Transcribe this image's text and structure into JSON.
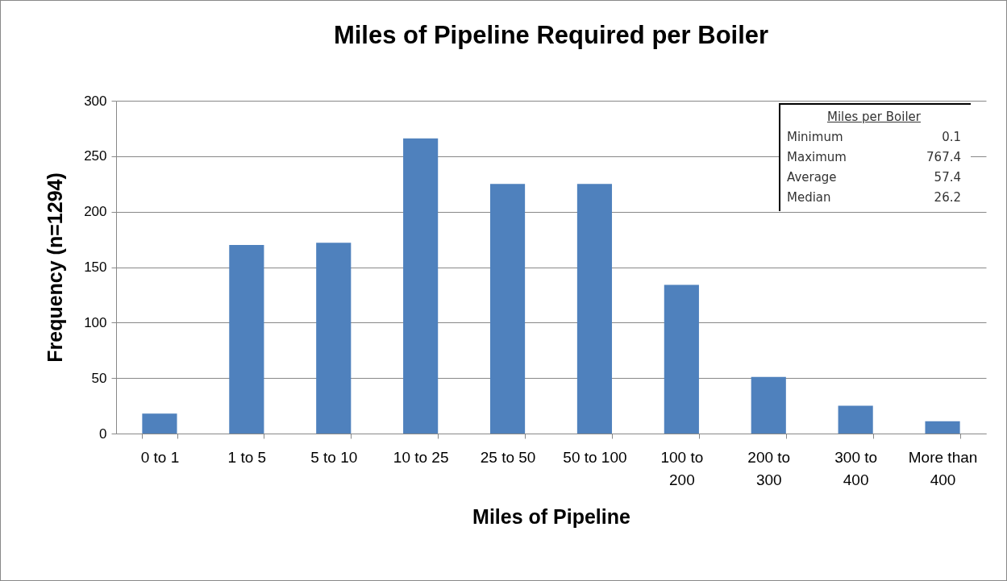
{
  "chart_data": {
    "type": "bar",
    "title": "Miles of Pipeline Required per Boiler",
    "xlabel": "Miles of Pipeline",
    "ylabel": "Frequency (n=1294)",
    "categories": [
      "0 to 1",
      "1 to 5",
      "5 to 10",
      "10 to 25",
      "25 to 50",
      "50 to 100",
      "100 to 200",
      "200 to 300",
      "300 to 400",
      "More than 400"
    ],
    "values": [
      18,
      170,
      172,
      266,
      225,
      225,
      134,
      51,
      25,
      11
    ],
    "color": "#4f81bd",
    "ylim": [
      0,
      300
    ],
    "yticks": [
      0,
      50,
      100,
      150,
      200,
      250,
      300
    ],
    "grid": "y",
    "annotations": [
      "Miles per Boiler",
      "Minimum",
      "0.1",
      "Maximum",
      "767.4",
      "Average",
      "57.4",
      "Median",
      "26.2"
    ]
  }
}
